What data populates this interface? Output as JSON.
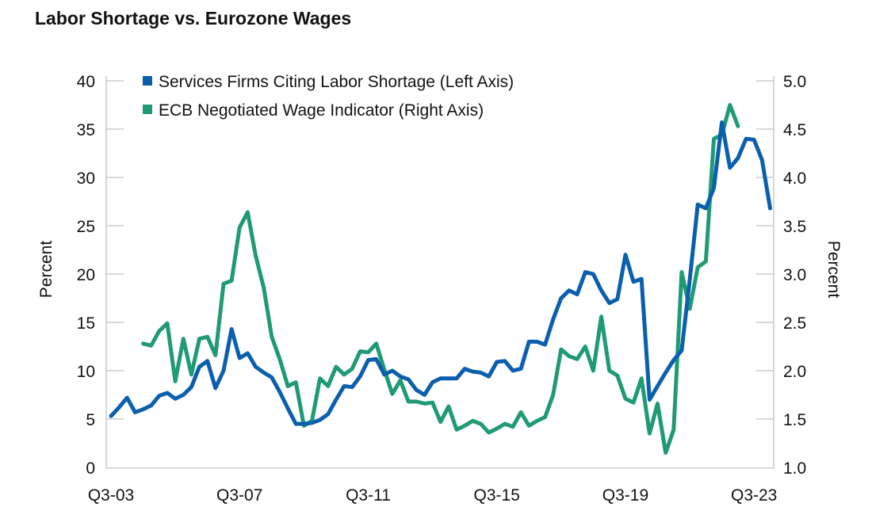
{
  "chart_data": {
    "type": "line",
    "title": "Labor Shortage vs. Eurozone Wages",
    "ylabel_left": "Percent",
    "ylabel_right": "Percent",
    "ylim_left": [
      0,
      40
    ],
    "ylim_right": [
      1.0,
      5.0
    ],
    "yticks_left": [
      "0",
      "5",
      "10",
      "15",
      "20",
      "25",
      "30",
      "35",
      "40"
    ],
    "yticks_right": [
      "1.0",
      "1.5",
      "2.0",
      "2.5",
      "3.0",
      "3.5",
      "4.0",
      "4.5",
      "5.0"
    ],
    "xticks": [
      "Q3-03",
      "Q3-07",
      "Q3-11",
      "Q3-15",
      "Q3-19",
      "Q3-23"
    ],
    "x_start": "Q3-03",
    "x_frequency": "quarterly",
    "legend_position": "top-left",
    "grid": false,
    "series": [
      {
        "name": "Services Firms Citing Labor Shortage (Left Axis)",
        "axis": "left",
        "color": "#0b5fad",
        "start_quarter_index": 0,
        "values": [
          5.3,
          6.2,
          7.2,
          5.7,
          6.0,
          6.4,
          7.4,
          7.7,
          7.1,
          7.5,
          8.3,
          10.4,
          11.0,
          8.2,
          10.0,
          14.3,
          11.3,
          11.8,
          10.4,
          9.8,
          9.3,
          7.8,
          6.1,
          4.5,
          4.5,
          4.6,
          4.9,
          5.5,
          7.0,
          8.4,
          8.3,
          9.4,
          11.1,
          11.2,
          9.6,
          10.0,
          9.4,
          9.1,
          8.0,
          7.5,
          8.8,
          9.2,
          9.2,
          9.2,
          10.2,
          9.9,
          9.8,
          9.4,
          10.9,
          11.0,
          10.0,
          10.2,
          13.0,
          13.0,
          12.7,
          15.3,
          17.5,
          18.3,
          17.9,
          20.2,
          20.0,
          18.3,
          17.0,
          17.4,
          22.0,
          19.2,
          19.5,
          7.0,
          8.4,
          9.8,
          11.1,
          12.1,
          19.4,
          27.2,
          26.8,
          28.9,
          35.7,
          31.0,
          32.0,
          34.0,
          33.9,
          31.8,
          26.8
        ]
      },
      {
        "name": "ECB Negotiated Wage Indicator (Right Axis)",
        "axis": "right",
        "color": "#1f9a74",
        "start_quarter_index": 4,
        "values": [
          2.28,
          2.26,
          2.41,
          2.49,
          1.89,
          2.33,
          1.96,
          2.33,
          2.35,
          2.16,
          2.9,
          2.93,
          3.48,
          3.64,
          3.19,
          2.86,
          2.35,
          2.12,
          1.84,
          1.88,
          1.43,
          1.48,
          1.92,
          1.84,
          2.04,
          1.96,
          2.02,
          2.2,
          2.19,
          2.28,
          2.01,
          1.76,
          1.9,
          1.68,
          1.68,
          1.66,
          1.67,
          1.47,
          1.63,
          1.39,
          1.43,
          1.48,
          1.45,
          1.36,
          1.4,
          1.45,
          1.42,
          1.57,
          1.43,
          1.48,
          1.52,
          1.75,
          2.22,
          2.15,
          2.12,
          2.25,
          2.0,
          2.56,
          2.0,
          1.95,
          1.71,
          1.67,
          1.92,
          1.35,
          1.66,
          1.15,
          1.39,
          3.02,
          2.64,
          3.07,
          3.13,
          4.4,
          4.44,
          4.75,
          4.53
        ]
      }
    ]
  }
}
